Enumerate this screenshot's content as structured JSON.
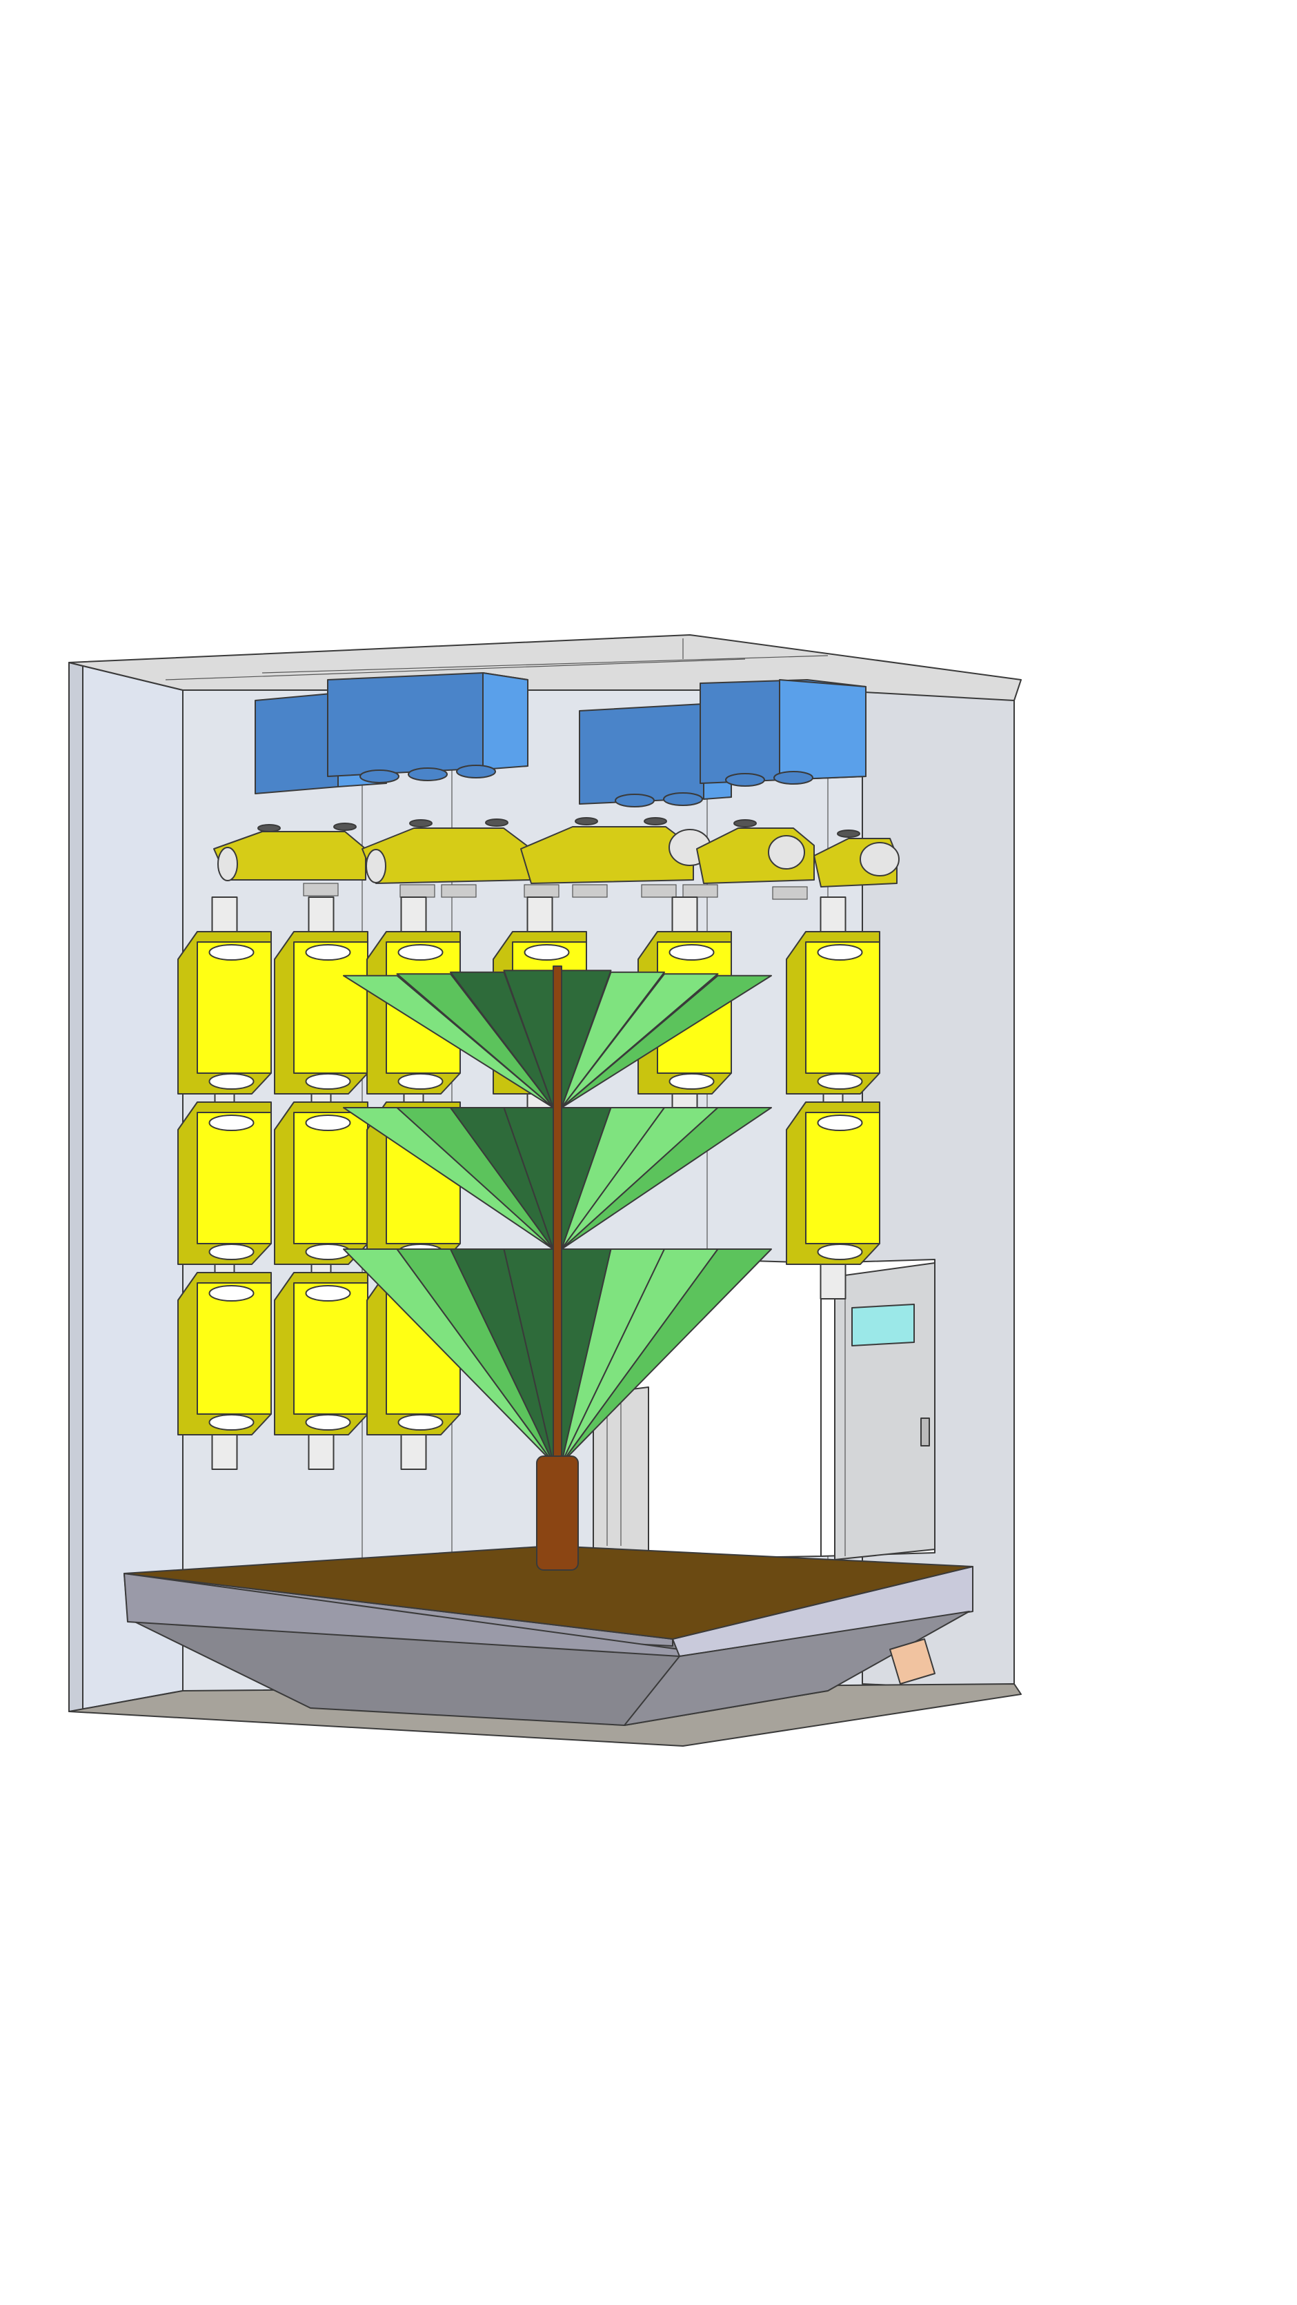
{
  "diagram": {
    "title": "",
    "labels": []
  },
  "colors": {
    "background": "#ffffff",
    "enclosure_wall": "#e3e7ef",
    "enclosure_side": "#d8dce3",
    "ceiling": "#dcdcdc",
    "floor": "#a7a39b",
    "ac_unit": "#4a84c9",
    "ac_unit_light": "#5aa0ea",
    "diffuser": "#d6cc17",
    "yellow_module": "#ffff14",
    "yellow_module_dark": "#c9c40f",
    "pipe": "#ececec",
    "tree_leaf_light": "#7fe37f",
    "tree_leaf_mid": "#5cc35c",
    "tree_leaf_dark": "#2e6b3a",
    "trunk": "#8b4513",
    "soil": "#6b4a12",
    "planter_top": "#9a9aa8",
    "planter_side": "#87878f",
    "door": "#d4d6d8",
    "door_window": "#9be8e8"
  },
  "components": [
    {
      "name": "enclosure",
      "icon": "cabinet-icon"
    },
    {
      "name": "ac-units",
      "icon": "blower-icon"
    },
    {
      "name": "air-diffusers",
      "icon": "diffuser-icon"
    },
    {
      "name": "yellow-modules",
      "icon": "box-icon"
    },
    {
      "name": "tree-model",
      "icon": "tree-icon"
    },
    {
      "name": "planter-base",
      "icon": "tray-icon"
    },
    {
      "name": "access-door",
      "icon": "door-icon"
    }
  ]
}
